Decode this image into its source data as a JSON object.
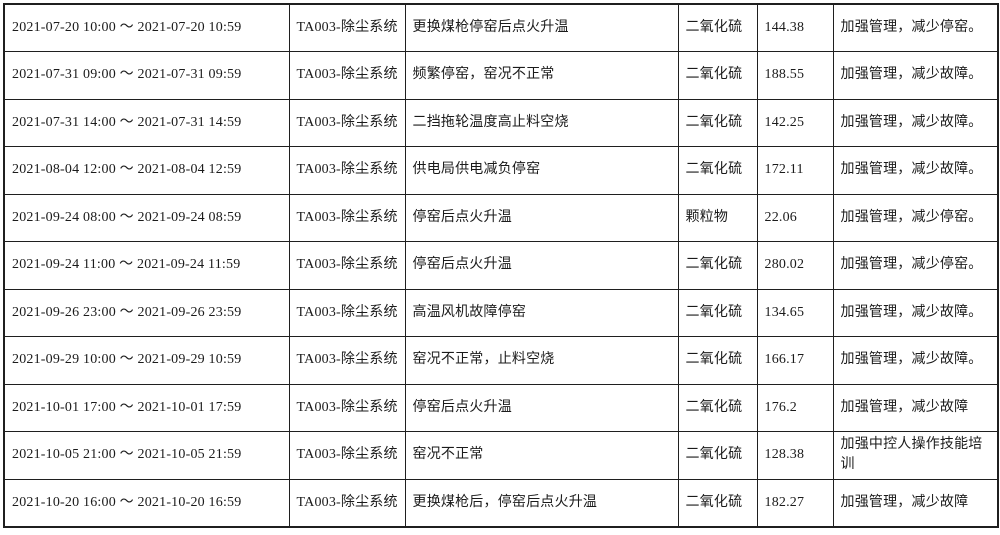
{
  "table": {
    "rows": [
      {
        "time": "2021-07-20 10:00 ～ 2021-07-20 10:59",
        "system": "TA003-除尘系统",
        "cause": "更换煤枪停窑后点火升温",
        "pollutant": "二氧化硫",
        "value": "144.38",
        "measure": "加强管理，减少停窑。"
      },
      {
        "time": "2021-07-31 09:00 ～ 2021-07-31 09:59",
        "system": "TA003-除尘系统",
        "cause": "频繁停窑，窑况不正常",
        "pollutant": "二氧化硫",
        "value": "188.55",
        "measure": "加强管理，减少故障。"
      },
      {
        "time": "2021-07-31 14:00 ～ 2021-07-31 14:59",
        "system": "TA003-除尘系统",
        "cause": "二挡拖轮温度高止料空烧",
        "pollutant": "二氧化硫",
        "value": "142.25",
        "measure": "加强管理，减少故障。"
      },
      {
        "time": "2021-08-04 12:00 ～ 2021-08-04 12:59",
        "system": "TA003-除尘系统",
        "cause": "供电局供电减负停窑",
        "pollutant": "二氧化硫",
        "value": "172.11",
        "measure": "加强管理，减少故障。"
      },
      {
        "time": "2021-09-24 08:00 ～ 2021-09-24 08:59",
        "system": "TA003-除尘系统",
        "cause": "停窑后点火升温",
        "pollutant": "颗粒物",
        "value": "22.06",
        "measure": "加强管理，减少停窑。"
      },
      {
        "time": "2021-09-24 11:00 ～ 2021-09-24 11:59",
        "system": "TA003-除尘系统",
        "cause": "停窑后点火升温",
        "pollutant": "二氧化硫",
        "value": "280.02",
        "measure": "加强管理，减少停窑。"
      },
      {
        "time": "2021-09-26 23:00 ～ 2021-09-26 23:59",
        "system": "TA003-除尘系统",
        "cause": "高温风机故障停窑",
        "pollutant": "二氧化硫",
        "value": "134.65",
        "measure": "加强管理，减少故障。"
      },
      {
        "time": "2021-09-29 10:00 ～ 2021-09-29 10:59",
        "system": "TA003-除尘系统",
        "cause": "窑况不正常，止料空烧",
        "pollutant": "二氧化硫",
        "value": "166.17",
        "measure": "加强管理，减少故障。"
      },
      {
        "time": "2021-10-01 17:00 ～ 2021-10-01 17:59",
        "system": "TA003-除尘系统",
        "cause": "停窑后点火升温",
        "pollutant": "二氧化硫",
        "value": "176.2",
        "measure": "加强管理，减少故障"
      },
      {
        "time": "2021-10-05 21:00 ～ 2021-10-05 21:59",
        "system": "TA003-除尘系统",
        "cause": "窑况不正常",
        "pollutant": "二氧化硫",
        "value": "128.38",
        "measure": "加强中控人操作技能培训"
      },
      {
        "time": "2021-10-20 16:00 ～ 2021-10-20 16:59",
        "system": "TA003-除尘系统",
        "cause": "更换煤枪后，停窑后点火升温",
        "pollutant": "二氧化硫",
        "value": "182.27",
        "measure": "加强管理，减少故障"
      }
    ]
  }
}
